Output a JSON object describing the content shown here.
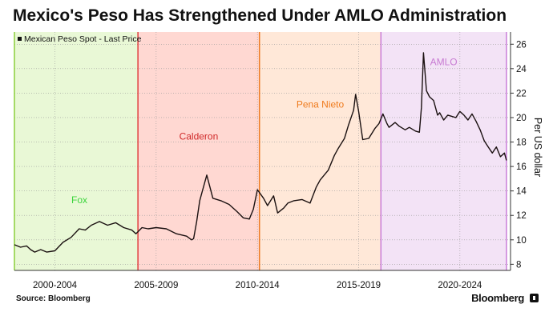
{
  "title": "Mexico's Peso Has Strengthened Under AMLO Administration",
  "source": "Source: Bloomberg",
  "brand": "Bloomberg",
  "chart_data": {
    "type": "line",
    "legend": "Mexican Peso Spot - Last Price",
    "ylabel": "Per US dollar",
    "ylim": [
      7.5,
      27
    ],
    "xlim": [
      2000.0,
      2024.5
    ],
    "yticks": [
      8,
      10,
      12,
      14,
      16,
      18,
      20,
      22,
      24,
      26
    ],
    "categories": [
      {
        "label": "2000-2004",
        "pos": 2002.0
      },
      {
        "label": "2005-2009",
        "pos": 2007.0
      },
      {
        "label": "2010-2014",
        "pos": 2012.0
      },
      {
        "label": "2015-2019",
        "pos": 2017.0
      },
      {
        "label": "2020-2024",
        "pos": 2022.0
      }
    ],
    "administrations": [
      {
        "name": "Fox",
        "start": 2000.0,
        "end": 2006.1,
        "fill": "#e9f8d6",
        "line": "#8ccf3c",
        "label_color": "#3cd43c",
        "label_value": 13.0
      },
      {
        "name": "Calderon",
        "start": 2006.1,
        "end": 2012.1,
        "fill": "#ffd8d2",
        "line": "#e04040",
        "label_color": "#d02a2a",
        "label_value": 18.2
      },
      {
        "name": "Pena Nieto",
        "start": 2012.1,
        "end": 2018.1,
        "fill": "#ffe8d8",
        "line": "#ee7a22",
        "label_color": "#ef7a1c",
        "label_value": 20.8
      },
      {
        "name": "AMLO",
        "start": 2018.1,
        "end": 2024.3,
        "fill": "#f3e3f6",
        "line": "#c97cd9",
        "label_color": "#c77ad2",
        "label_value": 24.3
      }
    ],
    "series": [
      {
        "name": "Mexican Peso Spot - Last Price",
        "color": "#1a1010",
        "x": [
          2000.0,
          2000.3,
          2000.6,
          2000.8,
          2001.0,
          2001.3,
          2001.6,
          2002.0,
          2002.4,
          2002.8,
          2003.2,
          2003.5,
          2003.8,
          2004.2,
          2004.6,
          2005.0,
          2005.4,
          2005.8,
          2006.0,
          2006.3,
          2006.6,
          2007.0,
          2007.5,
          2008.0,
          2008.5,
          2008.75,
          2008.85,
          2009.0,
          2009.15,
          2009.25,
          2009.5,
          2009.8,
          2010.2,
          2010.6,
          2011.0,
          2011.3,
          2011.6,
          2011.8,
          2012.0,
          2012.3,
          2012.5,
          2012.8,
          2013.0,
          2013.3,
          2013.5,
          2013.8,
          2014.2,
          2014.6,
          2014.9,
          2015.1,
          2015.5,
          2015.8,
          2016.0,
          2016.3,
          2016.5,
          2016.75,
          2016.85,
          2017.0,
          2017.2,
          2017.5,
          2017.8,
          2018.0,
          2018.2,
          2018.4,
          2018.5,
          2018.8,
          2019.0,
          2019.3,
          2019.5,
          2019.8,
          2020.0,
          2020.1,
          2020.2,
          2020.25,
          2020.35,
          2020.5,
          2020.7,
          2020.9,
          2021.0,
          2021.2,
          2021.4,
          2021.6,
          2021.8,
          2022.0,
          2022.2,
          2022.4,
          2022.6,
          2022.8,
          2023.0,
          2023.2,
          2023.4,
          2023.6,
          2023.8,
          2024.0,
          2024.2,
          2024.3
        ],
        "values": [
          9.6,
          9.4,
          9.5,
          9.2,
          9.0,
          9.2,
          9.0,
          9.1,
          9.8,
          10.2,
          10.9,
          10.8,
          11.2,
          11.5,
          11.2,
          11.4,
          11.0,
          10.8,
          10.5,
          11.0,
          10.9,
          11.0,
          10.9,
          10.5,
          10.3,
          10.0,
          10.1,
          11.5,
          13.2,
          13.8,
          15.3,
          13.4,
          13.2,
          12.9,
          12.3,
          11.8,
          11.7,
          12.5,
          14.1,
          13.4,
          12.8,
          13.6,
          12.2,
          12.6,
          13.0,
          13.2,
          13.3,
          13.0,
          14.3,
          14.9,
          15.7,
          16.9,
          17.5,
          18.3,
          19.4,
          20.6,
          21.9,
          20.5,
          18.2,
          18.3,
          19.1,
          19.5,
          20.3,
          19.5,
          19.2,
          19.6,
          19.3,
          19.0,
          19.2,
          18.9,
          18.8,
          20.8,
          25.3,
          24.3,
          22.2,
          21.7,
          21.4,
          20.2,
          20.4,
          19.8,
          20.2,
          20.1,
          20.0,
          20.5,
          20.2,
          19.8,
          20.3,
          19.7,
          19.0,
          18.1,
          17.6,
          17.1,
          17.6,
          16.8,
          17.1,
          16.5
        ]
      }
    ]
  }
}
